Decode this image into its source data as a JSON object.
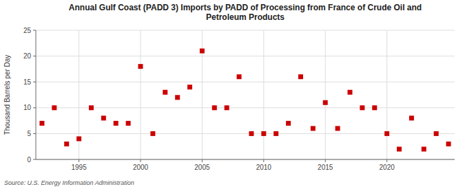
{
  "chart_data": {
    "type": "scatter",
    "title": "Annual Gulf Coast (PADD 3) Imports by PADD of Processing from France of Crude Oil and\nPetroleum Products",
    "y_label": "Thousand Barrels per Day",
    "annotations": [
      "Source: U.S. Energy Information Administration"
    ],
    "x": [
      1992,
      1993,
      1994,
      1995,
      1996,
      1997,
      1998,
      1999,
      2000,
      2001,
      2002,
      2003,
      2004,
      2005,
      2006,
      2007,
      2008,
      2009,
      2010,
      2011,
      2012,
      2013,
      2014,
      2015,
      2016,
      2017,
      2018,
      2019,
      2020,
      2021,
      2022,
      2023,
      2024,
      2025
    ],
    "values": [
      7,
      10,
      3,
      4,
      10,
      8,
      7,
      7,
      18,
      5,
      13,
      12,
      14,
      21,
      10,
      10,
      16,
      5,
      5,
      5,
      7,
      16,
      6,
      11,
      6,
      13,
      10,
      10,
      5,
      2,
      8,
      2,
      5,
      3
    ],
    "color": "#cc0000",
    "marker": "square",
    "xlim": [
      1991.5,
      2025.5
    ],
    "xticks": [
      1995,
      2000,
      2005,
      2010,
      2015,
      2020
    ],
    "ylim": [
      0,
      25
    ],
    "yticks": [
      0,
      5,
      10,
      15,
      20,
      25
    ],
    "grid": true
  }
}
